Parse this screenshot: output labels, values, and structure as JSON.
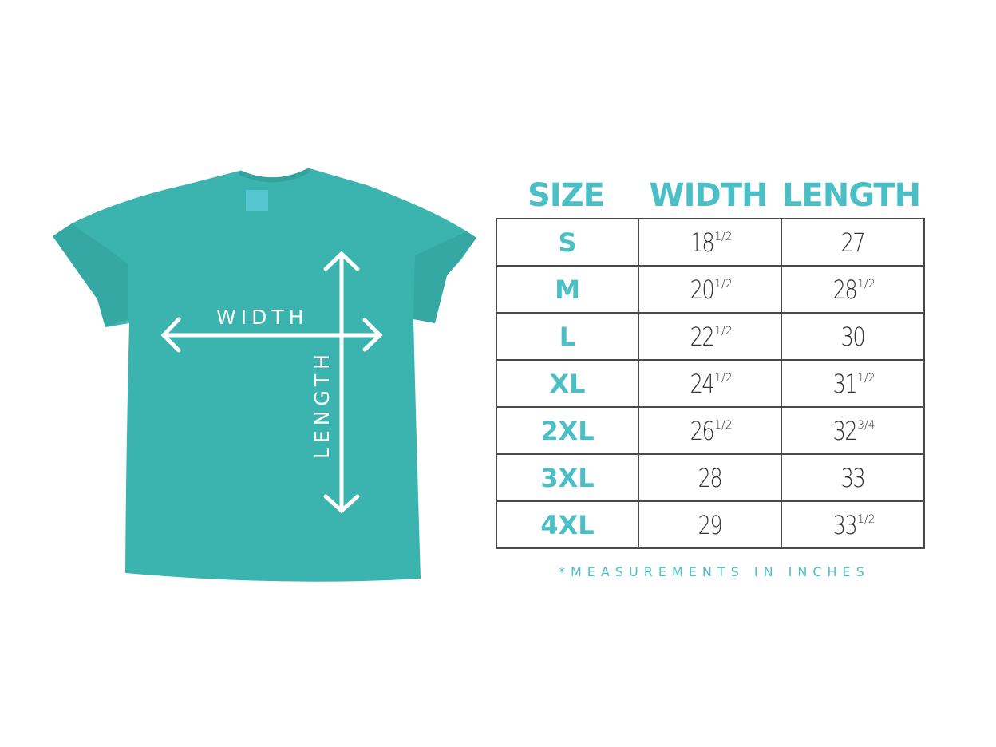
{
  "colors": {
    "accent": "#4bbfc6",
    "shirt": "#3bb3ae",
    "text": "#333333",
    "border": "#4a4a4a"
  },
  "shirt_labels": {
    "width": "WIDTH",
    "length": "LENGTH"
  },
  "table": {
    "headers": [
      "SIZE",
      "WIDTH",
      "LENGTH"
    ],
    "rows": [
      {
        "size": "S",
        "width": {
          "whole": "18",
          "frac": "1/2"
        },
        "length": {
          "whole": "27",
          "frac": ""
        }
      },
      {
        "size": "M",
        "width": {
          "whole": "20",
          "frac": "1/2"
        },
        "length": {
          "whole": "28",
          "frac": "1/2"
        }
      },
      {
        "size": "L",
        "width": {
          "whole": "22",
          "frac": "1/2"
        },
        "length": {
          "whole": "30",
          "frac": ""
        }
      },
      {
        "size": "XL",
        "width": {
          "whole": "24",
          "frac": "1/2"
        },
        "length": {
          "whole": "31",
          "frac": "1/2"
        }
      },
      {
        "size": "2XL",
        "width": {
          "whole": "26",
          "frac": "1/2"
        },
        "length": {
          "whole": "32",
          "frac": "3/4"
        }
      },
      {
        "size": "3XL",
        "width": {
          "whole": "28",
          "frac": ""
        },
        "length": {
          "whole": "33",
          "frac": ""
        }
      },
      {
        "size": "4XL",
        "width": {
          "whole": "29",
          "frac": ""
        },
        "length": {
          "whole": "33",
          "frac": "1/2"
        }
      }
    ]
  },
  "footnote": "*MEASUREMENTS IN INCHES"
}
